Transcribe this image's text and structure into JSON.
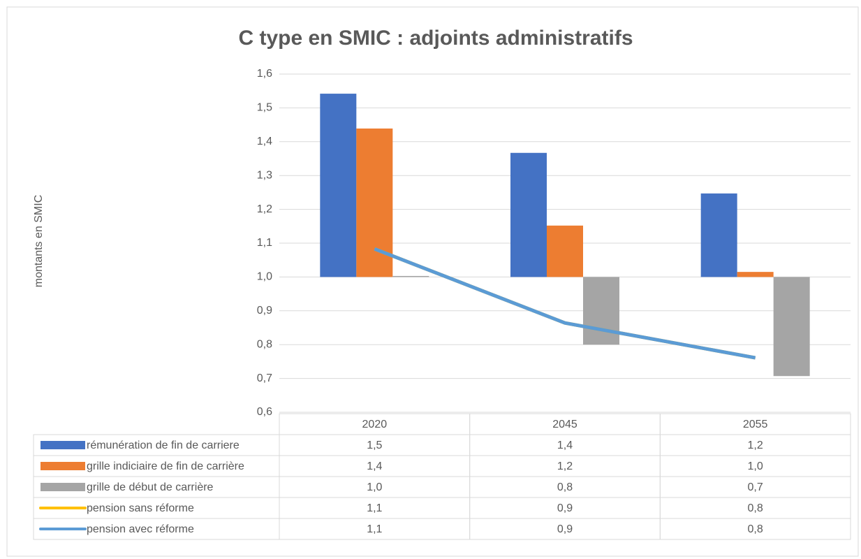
{
  "chart_data": {
    "type": "bar",
    "title": "C type en SMIC : adjoints administratifs",
    "y_label": "montants en SMIC",
    "categories": [
      "2020",
      "2045",
      "2055"
    ],
    "ylim": [
      0.6,
      1.6
    ],
    "yticks": [
      {
        "value": 0.6,
        "label": "0,6"
      },
      {
        "value": 0.7,
        "label": "0,7"
      },
      {
        "value": 0.8,
        "label": "0,8"
      },
      {
        "value": 0.9,
        "label": "0,9"
      },
      {
        "value": 1.0,
        "label": "1,0"
      },
      {
        "value": 1.1,
        "label": "1,1"
      },
      {
        "value": 1.2,
        "label": "1,2"
      },
      {
        "value": 1.3,
        "label": "1,3"
      },
      {
        "value": 1.4,
        "label": "1,4"
      },
      {
        "value": 1.5,
        "label": "1,5"
      },
      {
        "value": 1.6,
        "label": "1,6"
      }
    ],
    "x_axis_crosses": 1.0,
    "grid": true,
    "data_table": true,
    "series": [
      {
        "name": "rémunération de fin de carriere",
        "type": "bar",
        "color": "#4472c4",
        "values": [
          1.542,
          1.367,
          1.247
        ],
        "value_labels": [
          "1,5",
          "1,4",
          "1,2"
        ]
      },
      {
        "name": "grille indiciaire de fin de carrière",
        "type": "bar",
        "color": "#ed7d31",
        "values": [
          1.439,
          1.152,
          1.015
        ],
        "value_labels": [
          "1,4",
          "1,2",
          "1,0"
        ]
      },
      {
        "name": "grille de début de carrière",
        "type": "bar",
        "color": "#a5a5a5",
        "values": [
          1.003,
          0.8,
          0.707
        ],
        "value_labels": [
          "1,0",
          "0,8",
          "0,7"
        ]
      },
      {
        "name": "pension sans réforme",
        "type": "line",
        "color": "#ffc000",
        "values": [
          1.083,
          0.864,
          0.761
        ],
        "value_labels": [
          "1,1",
          "0,9",
          "0,8"
        ]
      },
      {
        "name": "pension avec réforme",
        "type": "line",
        "color": "#5b9bd5",
        "values": [
          1.083,
          0.864,
          0.761
        ],
        "value_labels": [
          "1,1",
          "0,9",
          "0,8"
        ]
      }
    ]
  }
}
